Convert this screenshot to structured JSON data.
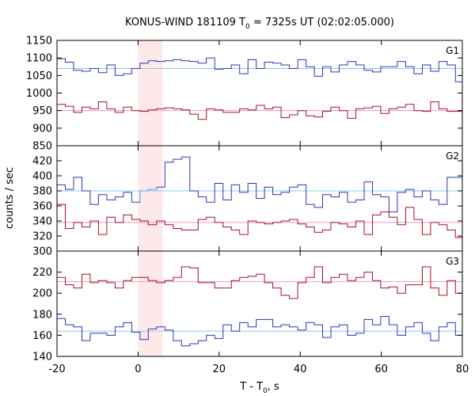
{
  "chart_data": {
    "type": "line",
    "style": "step",
    "title_main": "KONUS-WIND 181109 T",
    "title_sub": "0",
    "title_rest": " = 7325s UT (02:02:05.000)",
    "xlabel_main": "T - T",
    "xlabel_sub": "0",
    "xlabel_rest": ", s",
    "ylabel": "counts / sec",
    "xlim": [
      -20,
      80
    ],
    "x_ticks": [
      -20,
      0,
      20,
      40,
      60,
      80
    ],
    "x_tick_labels": [
      "-20",
      "0",
      "20",
      "40",
      "60",
      "80"
    ],
    "bin_width": 2.048,
    "bin_start": -20,
    "highlight": {
      "x_start": 0,
      "x_end": 6.1,
      "color": "#fde8ea"
    },
    "colors": {
      "blue": "#3333bb",
      "red": "#aa1122",
      "blue_bg": "#88ccee",
      "red_bg": "#ee99cc",
      "highlight_blue": "#66bbee"
    },
    "panels": [
      {
        "label": "G1",
        "ylim": [
          850,
          1150
        ],
        "y_ticks": [
          850,
          900,
          950,
          1000,
          1050,
          1100,
          1150
        ],
        "y_tick_labels": [
          "850",
          "900",
          "950",
          "1000",
          "1050",
          "1100",
          "1150"
        ],
        "series": [
          {
            "color": "blue",
            "background": 1070,
            "values": [
              1098,
              1088,
              1065,
              1062,
              1070,
              1058,
              1080,
              1050,
              1055,
              1070,
              1085,
              1092,
              1090,
              1092,
              1095,
              1092,
              1090,
              1085,
              1100,
              1068,
              1070,
              1080,
              1055,
              1095,
              1070,
              1088,
              1085,
              1080,
              1070,
              1095,
              1075,
              1048,
              1075,
              1060,
              1080,
              1090,
              1080,
              1065,
              1060,
              1075,
              1075,
              1090,
              1075,
              1055,
              1080,
              1062,
              1090,
              1080,
              1032
            ]
          },
          {
            "color": "red",
            "background": 950,
            "values": [
              968,
              962,
              945,
              960,
              955,
              975,
              955,
              945,
              960,
              950,
              948,
              952,
              955,
              958,
              955,
              952,
              940,
              925,
              955,
              952,
              945,
              945,
              955,
              952,
              965,
              955,
              960,
              930,
              938,
              950,
              935,
              932,
              948,
              960,
              950,
              928,
              955,
              958,
              962,
              942,
              955,
              960,
              968,
              950,
              948,
              975,
              955,
              948,
              948
            ]
          }
        ]
      },
      {
        "label": "G2",
        "ylim": [
          300,
          440
        ],
        "y_ticks": [
          300,
          320,
          340,
          360,
          380,
          400,
          420
        ],
        "y_tick_labels": [
          "300",
          "320",
          "340",
          "360",
          "380",
          "400",
          "420"
        ],
        "series": [
          {
            "color": "blue",
            "background": 380,
            "highlight": true,
            "values": [
              388,
              382,
              398,
              380,
              362,
              375,
              368,
              372,
              378,
              365,
              380,
              382,
              385,
              418,
              422,
              425,
              380,
              372,
              365,
              390,
              368,
              388,
              378,
              390,
              370,
              385,
              375,
              378,
              385,
              388,
              362,
              358,
              375,
              372,
              378,
              365,
              368,
              392,
              375,
              372,
              352,
              378,
              382,
              372,
              380,
              368,
              362,
              398,
              398
            ]
          },
          {
            "color": "red",
            "background": 338,
            "values": [
              362,
              330,
              338,
              332,
              340,
              322,
              345,
              338,
              348,
              342,
              340,
              335,
              340,
              335,
              330,
              328,
              328,
              342,
              345,
              338,
              332,
              328,
              322,
              340,
              338,
              336,
              338,
              340,
              342,
              336,
              332,
              325,
              328,
              338,
              336,
              332,
              340,
              322,
              348,
              352,
              345,
              335,
              358,
              342,
              322,
              338,
              335,
              328,
              318
            ]
          }
        ]
      },
      {
        "label": "G3",
        "ylim": [
          140,
          240
        ],
        "y_ticks": [
          140,
          160,
          180,
          200,
          220
        ],
        "y_tick_labels": [
          "140",
          "160",
          "180",
          "200",
          "220"
        ],
        "series": [
          {
            "color": "red",
            "background": 211,
            "values": [
              215,
              208,
              205,
              218,
              210,
              212,
              210,
              205,
              212,
              215,
              215,
              212,
              210,
              212,
              215,
              225,
              224,
              210,
              210,
              205,
              205,
              212,
              215,
              216,
              218,
              210,
              205,
              198,
              195,
              210,
              215,
              225,
              210,
              215,
              218,
              212,
              215,
              220,
              212,
              205,
              206,
              200,
              208,
              208,
              225,
              205,
              198,
              212,
              200
            ]
          },
          {
            "color": "blue",
            "background": 164,
            "values": [
              176,
              170,
              168,
              155,
              162,
              162,
              160,
              168,
              172,
              163,
              156,
              166,
              168,
              165,
              155,
              150,
              152,
              155,
              160,
              157,
              170,
              164,
              172,
              168,
              175,
              175,
              168,
              170,
              168,
              165,
              172,
              170,
              158,
              168,
              170,
              160,
              162,
              175,
              170,
              178,
              170,
              160,
              168,
              172,
              162,
              155,
              168,
              172,
              160
            ]
          }
        ]
      }
    ]
  }
}
